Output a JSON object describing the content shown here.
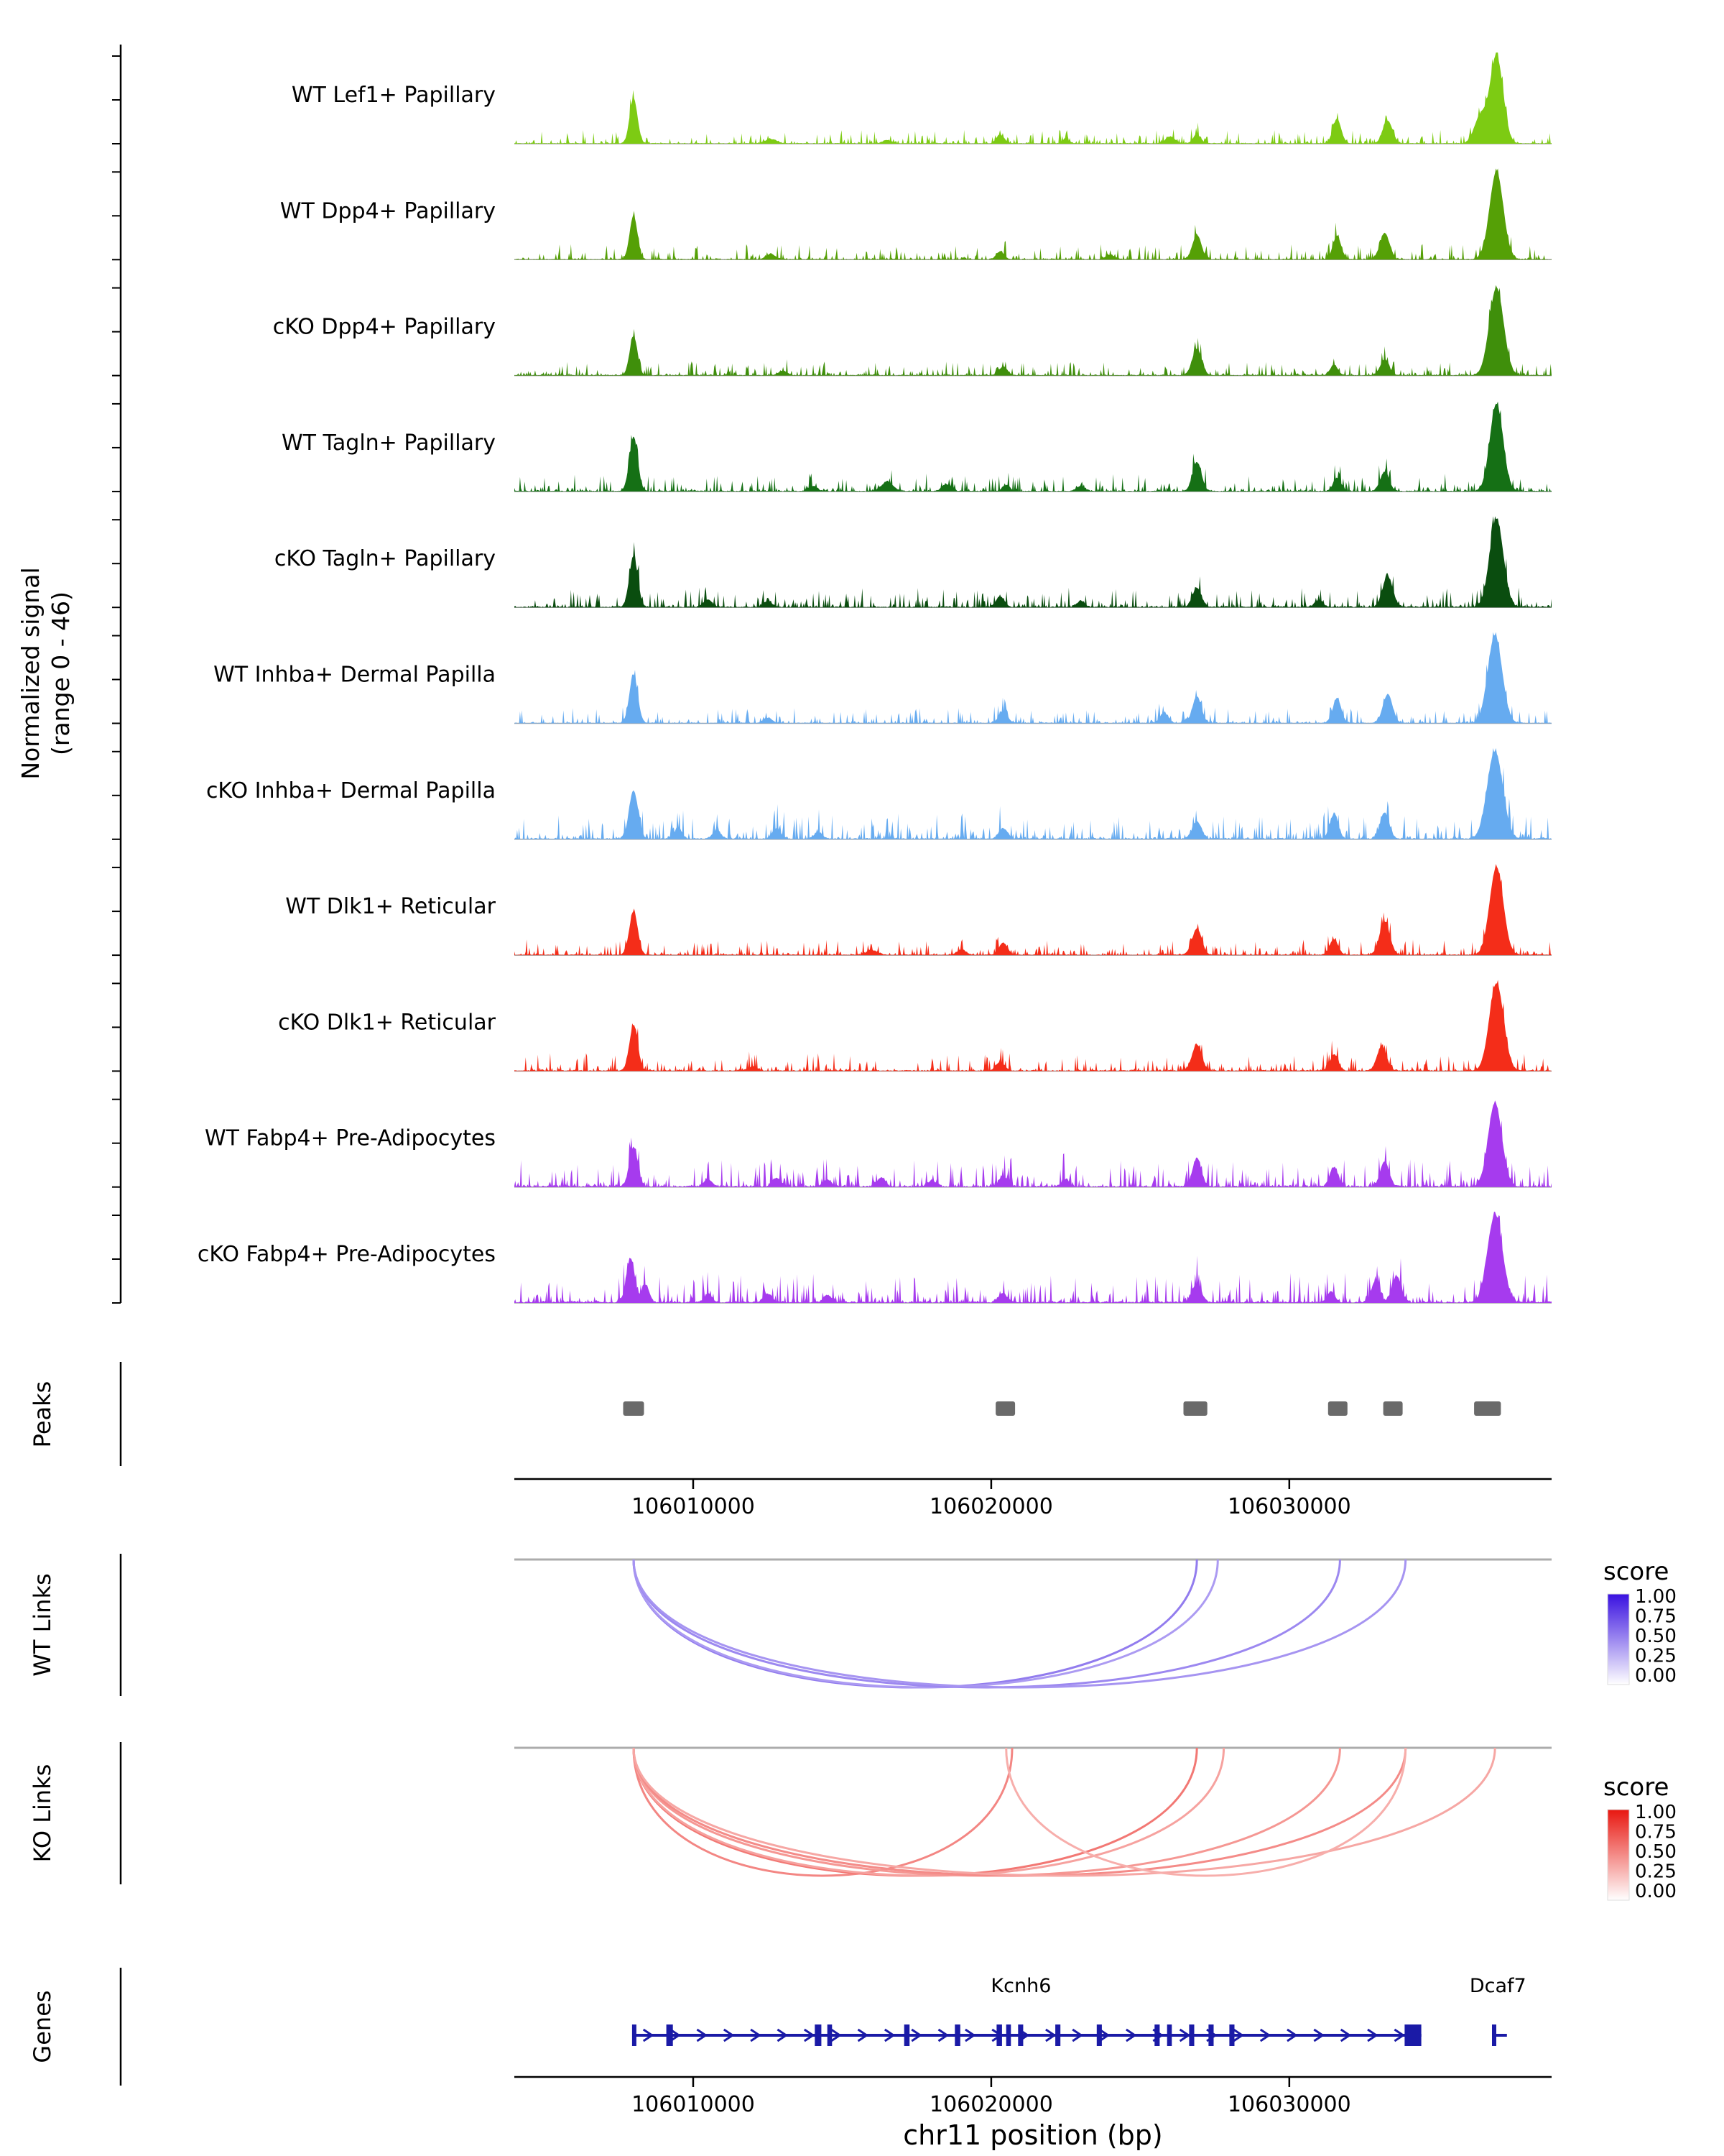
{
  "sidebar": {
    "signal_line1": "Normalized signal",
    "signal_line2": "(range 0 - 46)",
    "peaks": "Peaks",
    "wt_links": "WT Links",
    "ko_links": "KO Links",
    "genes": "Genes"
  },
  "chart_data": {
    "type": "genome-tracks",
    "region": {
      "chrom": "chr11",
      "start": 106004000,
      "end": 106038800
    },
    "axis": {
      "xlabel": "chr11 position (bp)",
      "tick_positions": [
        106010000,
        106020000,
        106030000
      ],
      "tick_labels": [
        "106010000",
        "106020000",
        "106030000"
      ]
    },
    "signal": {
      "ylim": [
        0,
        46
      ],
      "tracks": [
        {
          "label": "WT Lef1+ Papillary",
          "color": "#7DCB13",
          "noise_seed": 11,
          "noise_level": 0.7,
          "peaks": [
            [
              106008000,
              0.52,
              130
            ],
            [
              106012600,
              0.05,
              200
            ],
            [
              106016500,
              0.04,
              150
            ],
            [
              106020300,
              0.1,
              130
            ],
            [
              106022500,
              0.05,
              120
            ],
            [
              106026000,
              0.08,
              150
            ],
            [
              106026900,
              0.1,
              130
            ],
            [
              106031600,
              0.28,
              140
            ],
            [
              106033300,
              0.26,
              160
            ],
            [
              106036400,
              0.3,
              200
            ],
            [
              106036950,
              1.0,
              220
            ]
          ]
        },
        {
          "label": "WT Dpp4+ Papillary",
          "color": "#55A006",
          "noise_seed": 22,
          "noise_level": 0.8,
          "peaks": [
            [
              106008000,
              0.5,
              130
            ],
            [
              106012600,
              0.06,
              150
            ],
            [
              106020300,
              0.09,
              130
            ],
            [
              106024000,
              0.05,
              150
            ],
            [
              106026900,
              0.28,
              150
            ],
            [
              106031600,
              0.26,
              140
            ],
            [
              106033200,
              0.3,
              160
            ],
            [
              106036950,
              1.0,
              230
            ]
          ]
        },
        {
          "label": "cKO Dpp4+ Papillary",
          "color": "#3F8F0B",
          "noise_seed": 33,
          "noise_level": 0.7,
          "peaks": [
            [
              106008000,
              0.45,
              130
            ],
            [
              106013000,
              0.05,
              150
            ],
            [
              106020400,
              0.1,
              140
            ],
            [
              106026900,
              0.3,
              160
            ],
            [
              106031500,
              0.12,
              130
            ],
            [
              106033200,
              0.18,
              150
            ],
            [
              106036950,
              1.0,
              240
            ]
          ]
        },
        {
          "label": "WT Tagln+ Papillary",
          "color": "#157015",
          "noise_seed": 44,
          "noise_level": 0.9,
          "peaks": [
            [
              106008000,
              0.62,
              140
            ],
            [
              106014000,
              0.06,
              150
            ],
            [
              106016500,
              0.1,
              200
            ],
            [
              106018500,
              0.08,
              150
            ],
            [
              106020500,
              0.07,
              130
            ],
            [
              106023000,
              0.06,
              140
            ],
            [
              106026900,
              0.33,
              150
            ],
            [
              106031600,
              0.15,
              130
            ],
            [
              106033200,
              0.22,
              150
            ],
            [
              106036950,
              1.0,
              220
            ]
          ]
        },
        {
          "label": "cKO Tagln+ Papillary",
          "color": "#0A4D0F",
          "noise_seed": 55,
          "noise_level": 1.0,
          "peaks": [
            [
              106008000,
              0.58,
              140
            ],
            [
              106010500,
              0.08,
              150
            ],
            [
              106012500,
              0.07,
              140
            ],
            [
              106020300,
              0.12,
              140
            ],
            [
              106023000,
              0.07,
              130
            ],
            [
              106026900,
              0.22,
              150
            ],
            [
              106031000,
              0.08,
              130
            ],
            [
              106033300,
              0.35,
              170
            ],
            [
              106036950,
              1.0,
              230
            ]
          ]
        },
        {
          "label": "WT Inhba+ Dermal Papilla",
          "color": "#66ABF0",
          "noise_seed": 66,
          "noise_level": 0.8,
          "peaks": [
            [
              106008000,
              0.55,
              140
            ],
            [
              106012500,
              0.06,
              140
            ],
            [
              106020400,
              0.14,
              140
            ],
            [
              106025800,
              0.12,
              140
            ],
            [
              106026900,
              0.3,
              150
            ],
            [
              106031600,
              0.28,
              140
            ],
            [
              106033300,
              0.33,
              160
            ],
            [
              106036900,
              1.0,
              240
            ]
          ]
        },
        {
          "label": "cKO Inhba+ Dermal Papilla",
          "color": "#66ABF0",
          "noise_seed": 77,
          "noise_level": 1.3,
          "peaks": [
            [
              106008000,
              0.55,
              150
            ],
            [
              106009500,
              0.12,
              130
            ],
            [
              106010800,
              0.1,
              130
            ],
            [
              106012800,
              0.12,
              140
            ],
            [
              106014200,
              0.08,
              130
            ],
            [
              106020400,
              0.12,
              140
            ],
            [
              106026900,
              0.2,
              150
            ],
            [
              106031500,
              0.28,
              140
            ],
            [
              106033200,
              0.3,
              150
            ],
            [
              106036900,
              1.0,
              260
            ]
          ]
        },
        {
          "label": "WT Dlk1+ Reticular",
          "color": "#F42D19",
          "noise_seed": 88,
          "noise_level": 0.8,
          "peaks": [
            [
              106008000,
              0.5,
              140
            ],
            [
              106016000,
              0.05,
              200
            ],
            [
              106019000,
              0.06,
              150
            ],
            [
              106020400,
              0.14,
              140
            ],
            [
              106026900,
              0.3,
              160
            ],
            [
              106031500,
              0.18,
              140
            ],
            [
              106033200,
              0.38,
              170
            ],
            [
              106036950,
              1.0,
              230
            ]
          ]
        },
        {
          "label": "cKO Dlk1+ Reticular",
          "color": "#F42D19",
          "noise_seed": 99,
          "noise_level": 0.9,
          "peaks": [
            [
              106008000,
              0.52,
              140
            ],
            [
              106012000,
              0.05,
              150
            ],
            [
              106020300,
              0.1,
              140
            ],
            [
              106026900,
              0.3,
              160
            ],
            [
              106031500,
              0.18,
              140
            ],
            [
              106033100,
              0.28,
              160
            ],
            [
              106036950,
              1.0,
              240
            ]
          ]
        },
        {
          "label": "WT Fabp4+ Pre-Adipocytes",
          "color": "#A63BEE",
          "noise_seed": 110,
          "noise_level": 1.4,
          "peaks": [
            [
              106008000,
              0.45,
              140
            ],
            [
              106010500,
              0.08,
              130
            ],
            [
              106012800,
              0.1,
              140
            ],
            [
              106014500,
              0.08,
              130
            ],
            [
              106016300,
              0.1,
              140
            ],
            [
              106018000,
              0.07,
              130
            ],
            [
              106020400,
              0.12,
              140
            ],
            [
              106022500,
              0.08,
              130
            ],
            [
              106026900,
              0.32,
              150
            ],
            [
              106031500,
              0.22,
              140
            ],
            [
              106033200,
              0.28,
              150
            ],
            [
              106036900,
              0.95,
              230
            ]
          ]
        },
        {
          "label": "cKO Fabp4+ Pre-Adipocytes",
          "color": "#A63BEE",
          "noise_seed": 121,
          "noise_level": 1.5,
          "peaks": [
            [
              106007900,
              0.5,
              140
            ],
            [
              106008400,
              0.2,
              120
            ],
            [
              106010500,
              0.1,
              130
            ],
            [
              106012500,
              0.1,
              140
            ],
            [
              106014500,
              0.08,
              130
            ],
            [
              106020400,
              0.1,
              140
            ],
            [
              106026900,
              0.22,
              150
            ],
            [
              106031400,
              0.12,
              130
            ],
            [
              106032900,
              0.25,
              140
            ],
            [
              106033600,
              0.3,
              150
            ],
            [
              106036900,
              1.0,
              250
            ]
          ]
        }
      ]
    },
    "peaks": {
      "color": "#6A6A6A",
      "intervals": [
        [
          106007650,
          106008350
        ],
        [
          106020150,
          106020800
        ],
        [
          106026450,
          106027250
        ],
        [
          106031300,
          106031950
        ],
        [
          106033150,
          106033800
        ],
        [
          106036200,
          106037100
        ]
      ]
    },
    "links": {
      "wt": {
        "panel_label": "WT Links",
        "score_low": "#FFFFFF",
        "score_high": "#3911E0",
        "legend": {
          "title": "score",
          "ticks": [
            "1.00",
            "0.75",
            "0.50",
            "0.25",
            "0.00"
          ]
        },
        "arcs": [
          {
            "start": 106008000,
            "end": 106026900,
            "score": 0.55
          },
          {
            "start": 106008000,
            "end": 106027600,
            "score": 0.42
          },
          {
            "start": 106008000,
            "end": 106031700,
            "score": 0.5
          },
          {
            "start": 106008000,
            "end": 106033900,
            "score": 0.45
          }
        ]
      },
      "ko": {
        "panel_label": "KO Links",
        "score_low": "#FFFFFF",
        "score_high": "#E81710",
        "legend": {
          "title": "score",
          "ticks": [
            "1.00",
            "0.75",
            "0.50",
            "0.25",
            "0.00"
          ]
        },
        "arcs": [
          {
            "start": 106008000,
            "end": 106020700,
            "score": 0.52
          },
          {
            "start": 106008000,
            "end": 106026900,
            "score": 0.58
          },
          {
            "start": 106008000,
            "end": 106027800,
            "score": 0.4
          },
          {
            "start": 106008000,
            "end": 106031700,
            "score": 0.45
          },
          {
            "start": 106008000,
            "end": 106033900,
            "score": 0.5
          },
          {
            "start": 106008000,
            "end": 106036900,
            "score": 0.38
          },
          {
            "start": 106020500,
            "end": 106033900,
            "score": 0.35
          }
        ]
      }
    },
    "genes": {
      "color": "#1A1AA6",
      "items": [
        {
          "name": "Kcnh6",
          "strand": "+",
          "start": 106008000,
          "end": 106034430,
          "label_pos": 106021000,
          "exons": [
            [
              106007950,
              106008060
            ],
            [
              106009100,
              106009320
            ],
            [
              106014080,
              106014300
            ],
            [
              106014500,
              106014660
            ],
            [
              106017080,
              106017260
            ],
            [
              106018780,
              106018960
            ],
            [
              106020180,
              106020360
            ],
            [
              106020500,
              106020660
            ],
            [
              106020900,
              106021070
            ],
            [
              106022150,
              106022320
            ],
            [
              106023540,
              106023710
            ],
            [
              106025480,
              106025650
            ],
            [
              106025900,
              106026060
            ],
            [
              106026640,
              106026810
            ],
            [
              106027290,
              106027460
            ],
            [
              106027990,
              106028160
            ],
            [
              106033870,
              106034430
            ]
          ]
        },
        {
          "name": "Dcaf7",
          "strand": "+",
          "start": 106036800,
          "end": 106037300,
          "label_pos": 106037000,
          "exons": [
            [
              106036800,
              106036920
            ]
          ]
        }
      ]
    }
  }
}
